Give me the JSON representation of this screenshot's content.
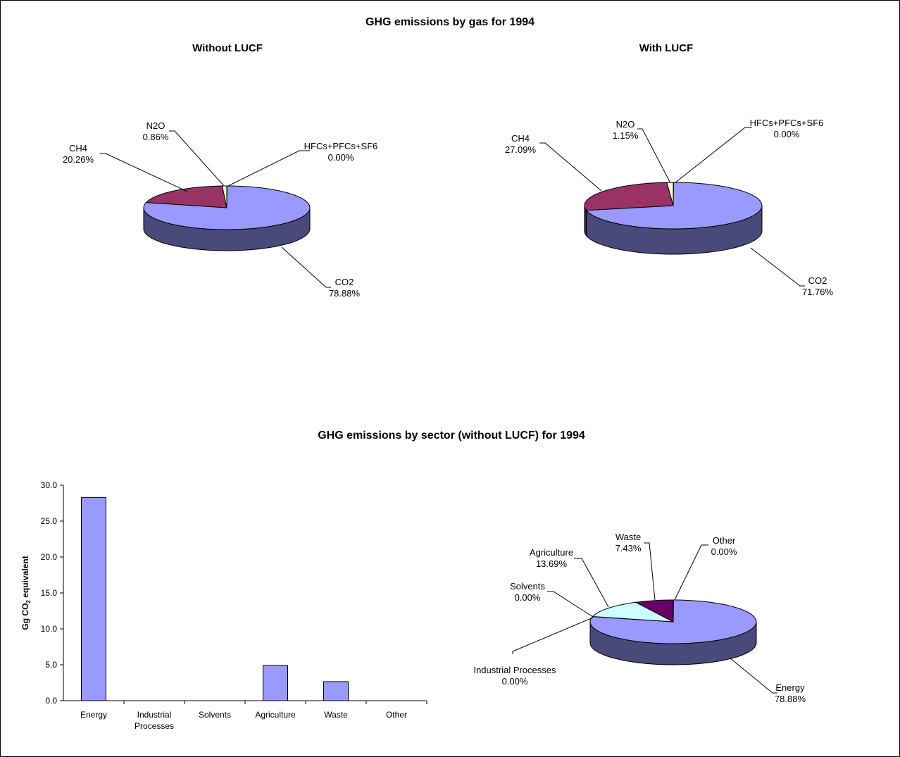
{
  "main_title": "GHG emissions by gas for 1994",
  "sector_title": "GHG emissions by sector (without LUCF) for 1994",
  "chart_data": [
    {
      "type": "pie",
      "title": "Without LUCF",
      "slices": [
        {
          "label": "CO2",
          "value": 78.88,
          "pct": "78.88%",
          "color": "#9999ff"
        },
        {
          "label": "CH4",
          "value": 20.26,
          "pct": "20.26%",
          "color": "#993366"
        },
        {
          "label": "N2O",
          "value": 0.86,
          "pct": "0.86%",
          "color": "#ffffcc"
        },
        {
          "label": "HFCs+PFCs+SF6",
          "value": 0.0,
          "pct": "0.00%",
          "color": "#ccffff"
        }
      ]
    },
    {
      "type": "pie",
      "title": "With LUCF",
      "slices": [
        {
          "label": "CO2",
          "value": 71.76,
          "pct": "71.76%",
          "color": "#9999ff"
        },
        {
          "label": "CH4",
          "value": 27.09,
          "pct": "27.09%",
          "color": "#993366"
        },
        {
          "label": "N2O",
          "value": 1.15,
          "pct": "1.15%",
          "color": "#ffffcc"
        },
        {
          "label": "HFCs+PFCs+SF6",
          "value": 0.0,
          "pct": "0.00%",
          "color": "#ccffff"
        }
      ]
    },
    {
      "type": "bar",
      "title": "",
      "categories": [
        "Energy",
        "Industrial Processes",
        "Solvents",
        "Agriculture",
        "Waste",
        "Other"
      ],
      "values": [
        28.3,
        0.0,
        0.0,
        4.9,
        2.65,
        0.0
      ],
      "ylabel_main": "Gg CO",
      "ylabel_sub": "2",
      "ylabel_tail": " equivalent",
      "ylim": [
        0,
        30
      ],
      "yticks": [
        "0.0",
        "5.0",
        "10.0",
        "15.0",
        "20.0",
        "25.0",
        "30.0"
      ],
      "bar_color": "#9999ff",
      "grid": false
    },
    {
      "type": "pie",
      "title": "",
      "slices": [
        {
          "label": "Energy",
          "value": 78.88,
          "pct": "78.88%",
          "color": "#9999ff"
        },
        {
          "label": "Industrial Processes",
          "value": 0.0,
          "pct": "0.00%",
          "color": "#993366"
        },
        {
          "label": "Solvents",
          "value": 0.0,
          "pct": "0.00%",
          "color": "#ffffcc"
        },
        {
          "label": "Agriculture",
          "value": 13.69,
          "pct": "13.69%",
          "color": "#ccffff"
        },
        {
          "label": "Waste",
          "value": 7.43,
          "pct": "7.43%",
          "color": "#660066"
        },
        {
          "label": "Other",
          "value": 0.0,
          "pct": "0.00%",
          "color": "#ff8080"
        }
      ]
    }
  ]
}
